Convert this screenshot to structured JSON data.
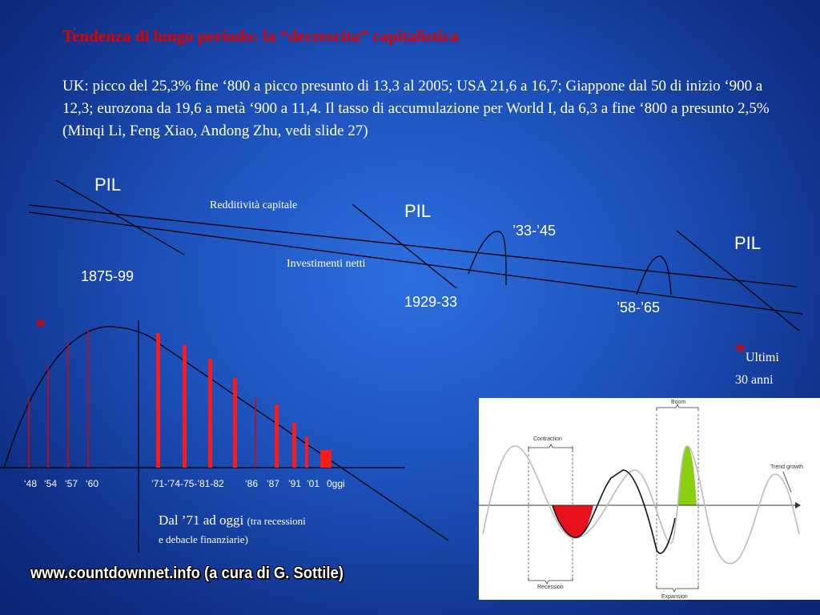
{
  "slide": {
    "title": "Tendenza di lungo periodo: la “decrescita” capitalistica",
    "paragraph": "UK: picco del 25,3% fine ‘800 a picco presunto di 13,3 al 2005; USA 21,6 a 16,7; Giappone dal 50 di inizio ‘900 a 12,3; eurozona da 19,6 a metà ‘900 a 11,4. Il tasso di accumulazione per World I, da 6,3 a fine ‘800 a presunto 2,5% (Minqi Li, Feng Xiao, Andong Zhu, vedi slide 27)",
    "credit": "www.countdownnet.info (a cura di G. Sottile)"
  },
  "top_diagram": {
    "pil_labels": [
      "PIL",
      "PIL",
      "PIL"
    ],
    "line_label_1": "Redditività capitale",
    "line_label_2": "Investimenti netti",
    "periods": [
      "1875-99",
      "1929-33",
      "’33-’45",
      "’58-’65"
    ],
    "accent_color": "#e00000"
  },
  "bottom_chart": {
    "star": "*",
    "tick_labels": [
      "‘48",
      "‘54",
      "‘57",
      "‘60",
      "’71-’74-75-’81-82",
      "‘86",
      "’87",
      "’91",
      "’01",
      "0ggi"
    ],
    "caption_main": "Dal ’71 ad oggi",
    "caption_small_1": "(tra recessioni",
    "caption_small_2": "e debacle finanziarie)",
    "note_star": "*",
    "note_text_1": "Ultimi",
    "note_text_2": "30 anni",
    "bar_color": "#ff1a1a"
  },
  "cycle_image": {
    "labels": {
      "boom": "Boom",
      "contraction": "Contraction",
      "trend": "Trend growth",
      "recession": "Recession",
      "expansion": "Expansion"
    },
    "recession_color": "#e8101a",
    "boom_color": "#88d010"
  }
}
